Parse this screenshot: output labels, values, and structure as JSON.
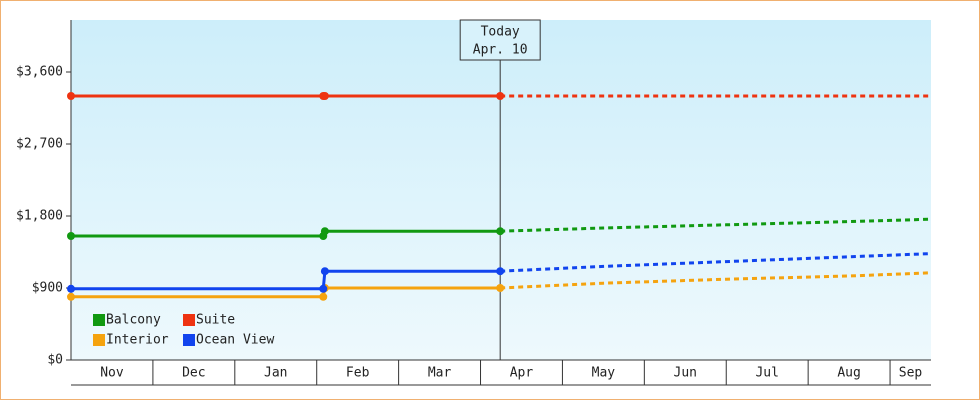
{
  "chart_data": {
    "type": "line",
    "x": [
      0,
      3.08,
      3.1,
      5.24,
      6.5,
      8,
      9.5,
      10.5
    ],
    "xlim": [
      0,
      10.5
    ],
    "xticks": [
      {
        "value": 0.5,
        "label": "Nov"
      },
      {
        "value": 1.5,
        "label": "Dec"
      },
      {
        "value": 2.5,
        "label": "Jan"
      },
      {
        "value": 3.5,
        "label": "Feb"
      },
      {
        "value": 4.5,
        "label": "Mar"
      },
      {
        "value": 5.5,
        "label": "Apr"
      },
      {
        "value": 6.5,
        "label": "May"
      },
      {
        "value": 7.5,
        "label": "Jun"
      },
      {
        "value": 8.5,
        "label": "Jul"
      },
      {
        "value": 9.5,
        "label": "Aug"
      },
      {
        "value": 10.25,
        "label": "Sep"
      }
    ],
    "ylim": [
      0,
      4250
    ],
    "yticks": [
      {
        "value": 0,
        "label": "$0"
      },
      {
        "value": 900,
        "label": "$900"
      },
      {
        "value": 1800,
        "label": "$1,800"
      },
      {
        "value": 2700,
        "label": "$2,700"
      },
      {
        "value": 3600,
        "label": "$3,600"
      }
    ],
    "today": {
      "x": 5.24,
      "label": "Today",
      "date": "Apr. 10"
    },
    "legend": "bottom-left",
    "series": [
      {
        "name": "Balcony",
        "color": "#119911",
        "values": [
          1550,
          1550,
          1610,
          1610,
          1650,
          1690,
          1730,
          1760
        ]
      },
      {
        "name": "Suite",
        "color": "#ee3311",
        "values": [
          3300,
          3300,
          3300,
          3300,
          3300,
          3300,
          3300,
          3300
        ]
      },
      {
        "name": "Interior",
        "color": "#f5a30f",
        "values": [
          790,
          790,
          900,
          900,
          960,
          1010,
          1050,
          1090
        ]
      },
      {
        "name": "Ocean View",
        "color": "#1144ee",
        "values": [
          890,
          890,
          1110,
          1110,
          1170,
          1230,
          1290,
          1330
        ]
      }
    ]
  }
}
